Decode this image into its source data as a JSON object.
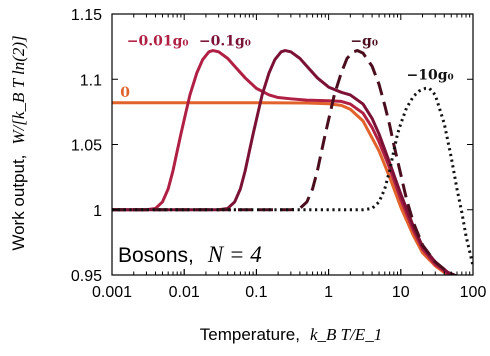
{
  "chart_data": {
    "type": "line",
    "xlabel": {
      "prefix": "Temperature,",
      "math": "k_B T/E_1"
    },
    "ylabel": {
      "prefix": "Work output,",
      "math": "W/[k_B T ln(2)]"
    },
    "xscale": "log",
    "xlim": [
      0.001,
      100
    ],
    "ylim": [
      0.95,
      1.15
    ],
    "xticks": [
      {
        "value": 0.001,
        "label": "0.001"
      },
      {
        "value": 0.01,
        "label": "0.01"
      },
      {
        "value": 0.1,
        "label": "0.1"
      },
      {
        "value": 1,
        "label": "1"
      },
      {
        "value": 10,
        "label": "10"
      },
      {
        "value": 100,
        "label": "100"
      }
    ],
    "yticks": [
      {
        "value": 0.95,
        "label": "0.95"
      },
      {
        "value": 1.0,
        "label": "1"
      },
      {
        "value": 1.05,
        "label": "1.05"
      },
      {
        "value": 1.1,
        "label": "1.1"
      },
      {
        "value": 1.15,
        "label": "1.15"
      }
    ],
    "grid": false,
    "annotation": {
      "text": "Bosons,",
      "math": "N = 4",
      "position": "bottom-left"
    },
    "series": [
      {
        "name": "0",
        "color": "#e2622c",
        "dash": "solid",
        "label_x": 0.0013,
        "label_y": 1.0865,
        "points": [
          [
            0.001,
            1.082
          ],
          [
            0.01,
            1.082
          ],
          [
            0.1,
            1.082
          ],
          [
            0.5,
            1.0818
          ],
          [
            1,
            1.0812
          ],
          [
            1.5,
            1.08
          ],
          [
            2,
            1.077
          ],
          [
            3,
            1.068
          ],
          [
            5,
            1.045
          ],
          [
            7,
            1.025
          ],
          [
            10,
            1.002
          ],
          [
            15,
            0.98
          ],
          [
            20,
            0.967
          ],
          [
            30,
            0.957
          ],
          [
            40,
            0.952
          ],
          [
            60,
            0.948
          ]
        ]
      },
      {
        "name": "−0.01g₀",
        "color": "#b01f44",
        "dash": "solid",
        "label_x": 0.0016,
        "label_y": 1.126,
        "points": [
          [
            0.001,
            1.0
          ],
          [
            0.003,
            1.0
          ],
          [
            0.004,
            1.001
          ],
          [
            0.005,
            1.006
          ],
          [
            0.006,
            1.016
          ],
          [
            0.007,
            1.03
          ],
          [
            0.008,
            1.045
          ],
          [
            0.009,
            1.058
          ],
          [
            0.01,
            1.069
          ],
          [
            0.012,
            1.088
          ],
          [
            0.015,
            1.105
          ],
          [
            0.018,
            1.115
          ],
          [
            0.022,
            1.121
          ],
          [
            0.025,
            1.122
          ],
          [
            0.03,
            1.121
          ],
          [
            0.04,
            1.116
          ],
          [
            0.05,
            1.11
          ],
          [
            0.07,
            1.101
          ],
          [
            0.1,
            1.093
          ],
          [
            0.15,
            1.088
          ],
          [
            0.2,
            1.086
          ],
          [
            0.3,
            1.085
          ],
          [
            0.5,
            1.084
          ],
          [
            1,
            1.0835
          ],
          [
            1.5,
            1.083
          ],
          [
            2,
            1.081
          ],
          [
            3,
            1.074
          ],
          [
            4,
            1.063
          ],
          [
            5,
            1.052
          ],
          [
            7,
            1.032
          ],
          [
            10,
            1.008
          ],
          [
            15,
            0.984
          ],
          [
            20,
            0.97
          ],
          [
            30,
            0.958
          ],
          [
            45,
            0.951
          ],
          [
            60,
            0.948
          ]
        ]
      },
      {
        "name": "−0.1g₀",
        "color": "#7b1236",
        "dash": "solid",
        "label_x": 0.016,
        "label_y": 1.126,
        "points": [
          [
            0.001,
            1.0
          ],
          [
            0.03,
            1.0
          ],
          [
            0.04,
            1.001
          ],
          [
            0.05,
            1.006
          ],
          [
            0.06,
            1.016
          ],
          [
            0.07,
            1.03
          ],
          [
            0.08,
            1.045
          ],
          [
            0.09,
            1.058
          ],
          [
            0.1,
            1.069
          ],
          [
            0.12,
            1.088
          ],
          [
            0.15,
            1.105
          ],
          [
            0.18,
            1.115
          ],
          [
            0.22,
            1.121
          ],
          [
            0.25,
            1.122
          ],
          [
            0.3,
            1.121
          ],
          [
            0.4,
            1.116
          ],
          [
            0.5,
            1.11
          ],
          [
            0.7,
            1.101
          ],
          [
            1,
            1.094
          ],
          [
            1.5,
            1.09
          ],
          [
            2,
            1.088
          ],
          [
            3,
            1.081
          ],
          [
            4,
            1.07
          ],
          [
            5,
            1.058
          ],
          [
            7,
            1.036
          ],
          [
            10,
            1.012
          ],
          [
            15,
            0.987
          ],
          [
            20,
            0.972
          ],
          [
            30,
            0.96
          ],
          [
            45,
            0.952
          ],
          [
            60,
            0.949
          ]
        ]
      },
      {
        "name": "−g₀",
        "color": "#4a0e1e",
        "dash": "longdash",
        "label_x": 2.0,
        "label_y": 1.126,
        "points": [
          [
            0.001,
            1.0
          ],
          [
            0.3,
            1.0
          ],
          [
            0.4,
            1.001
          ],
          [
            0.5,
            1.006
          ],
          [
            0.6,
            1.016
          ],
          [
            0.7,
            1.03
          ],
          [
            0.8,
            1.045
          ],
          [
            0.9,
            1.058
          ],
          [
            1,
            1.069
          ],
          [
            1.2,
            1.088
          ],
          [
            1.5,
            1.105
          ],
          [
            1.8,
            1.116
          ],
          [
            2.2,
            1.121
          ],
          [
            2.5,
            1.122
          ],
          [
            3,
            1.12
          ],
          [
            4,
            1.11
          ],
          [
            5,
            1.096
          ],
          [
            6,
            1.08
          ],
          [
            7,
            1.065
          ],
          [
            8,
            1.05
          ],
          [
            10,
            1.027
          ],
          [
            12,
            1.008
          ],
          [
            15,
            0.99
          ],
          [
            20,
            0.973
          ],
          [
            30,
            0.96
          ],
          [
            45,
            0.952
          ],
          [
            60,
            0.949
          ]
        ]
      },
      {
        "name": "−10g₀",
        "color": "#111111",
        "dash": "dotted",
        "label_x": 12.0,
        "label_y": 1.1,
        "points": [
          [
            0.001,
            1.0
          ],
          [
            3,
            1.0
          ],
          [
            4,
            1.001
          ],
          [
            5,
            1.006
          ],
          [
            6,
            1.016
          ],
          [
            7,
            1.03
          ],
          [
            8,
            1.045
          ],
          [
            9,
            1.058
          ],
          [
            10,
            1.066
          ],
          [
            12,
            1.078
          ],
          [
            15,
            1.087
          ],
          [
            18,
            1.091
          ],
          [
            22,
            1.093
          ],
          [
            25,
            1.093
          ],
          [
            30,
            1.088
          ],
          [
            40,
            1.066
          ],
          [
            50,
            1.04
          ],
          [
            60,
            1.016
          ],
          [
            70,
            0.998
          ],
          [
            80,
            0.98
          ],
          [
            100,
            0.957
          ]
        ]
      }
    ]
  }
}
